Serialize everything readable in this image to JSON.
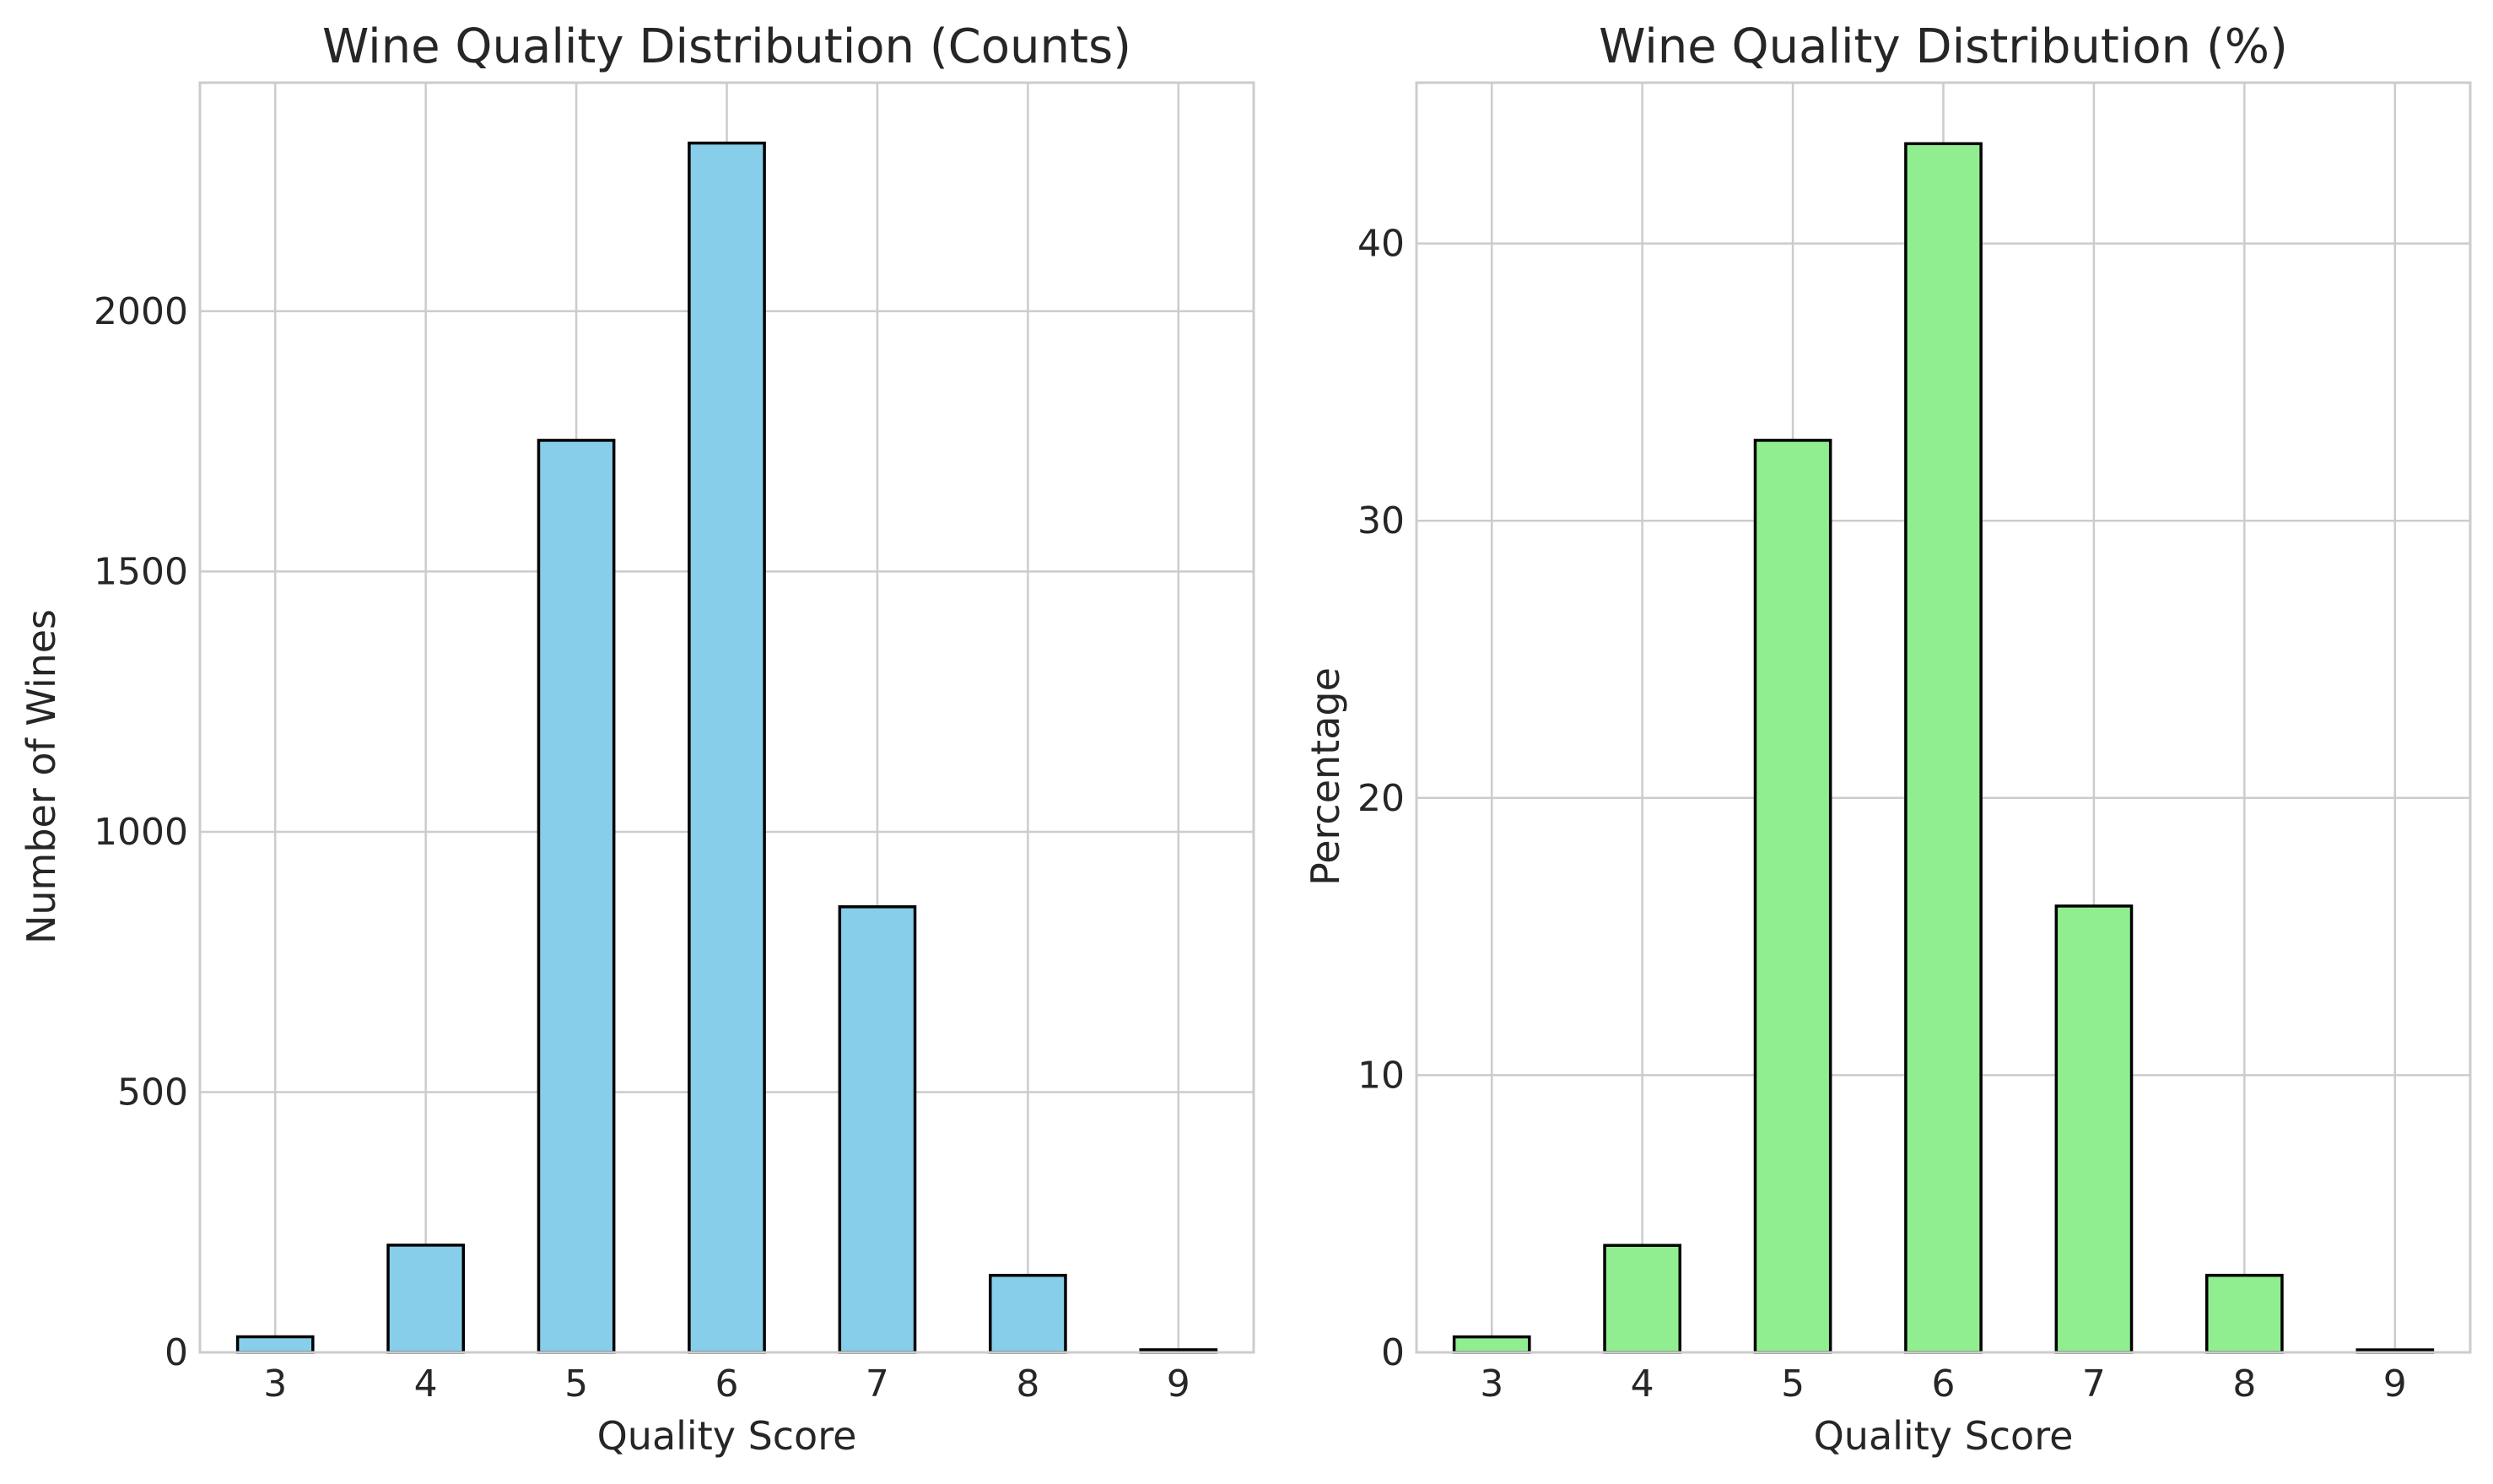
{
  "chart_data": [
    {
      "type": "bar",
      "title": "Wine Quality Distribution (Counts)",
      "xlabel": "Quality Score",
      "ylabel": "Number of Wines",
      "categories": [
        "3",
        "4",
        "5",
        "6",
        "7",
        "8",
        "9"
      ],
      "values": [
        30,
        206,
        1752,
        2323,
        856,
        148,
        5
      ],
      "ylim": [
        0,
        2439
      ],
      "yticks": [
        0,
        500,
        1000,
        1500,
        2000
      ],
      "grid": true,
      "color": "#87ceeb",
      "edge_color": "#000000"
    },
    {
      "type": "bar",
      "title": "Wine Quality Distribution (%)",
      "xlabel": "Quality Score",
      "ylabel": "Percentage",
      "categories": [
        "3",
        "4",
        "5",
        "6",
        "7",
        "8",
        "9"
      ],
      "values": [
        0.56,
        3.86,
        32.9,
        43.6,
        16.1,
        2.78,
        0.09
      ],
      "ylim": [
        0,
        45.8
      ],
      "yticks": [
        0,
        10,
        20,
        30,
        40
      ],
      "grid": true,
      "color": "#90ee90",
      "edge_color": "#000000"
    }
  ]
}
